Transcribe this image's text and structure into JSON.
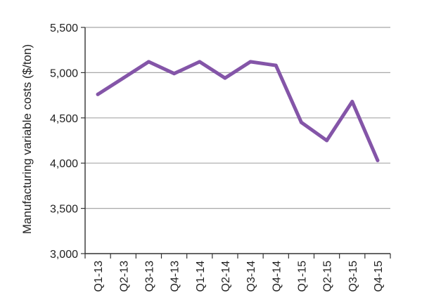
{
  "chart_data": {
    "type": "line",
    "title": "",
    "xlabel": "",
    "ylabel": "Manufacturing variable costs ($/ton)",
    "categories": [
      "Q1-13",
      "Q2-13",
      "Q3-13",
      "Q4-13",
      "Q1-14",
      "Q2-14",
      "Q3-14",
      "Q4-14",
      "Q1-15",
      "Q2-15",
      "Q3-15",
      "Q4-15"
    ],
    "series": [
      {
        "values": [
          4760,
          4940,
          5120,
          4990,
          5120,
          4940,
          5120,
          5080,
          4450,
          4250,
          4680,
          4030
        ],
        "color": "#8455a8"
      }
    ],
    "ylim": [
      3000,
      5500
    ],
    "yticks": [
      3000,
      3500,
      4000,
      4500,
      5000,
      5500
    ],
    "ytick_labels": [
      "3,000",
      "3,500",
      "4,000",
      "4,500",
      "5,000",
      "5,500"
    ],
    "grid": "horizontal",
    "legend": "none"
  }
}
